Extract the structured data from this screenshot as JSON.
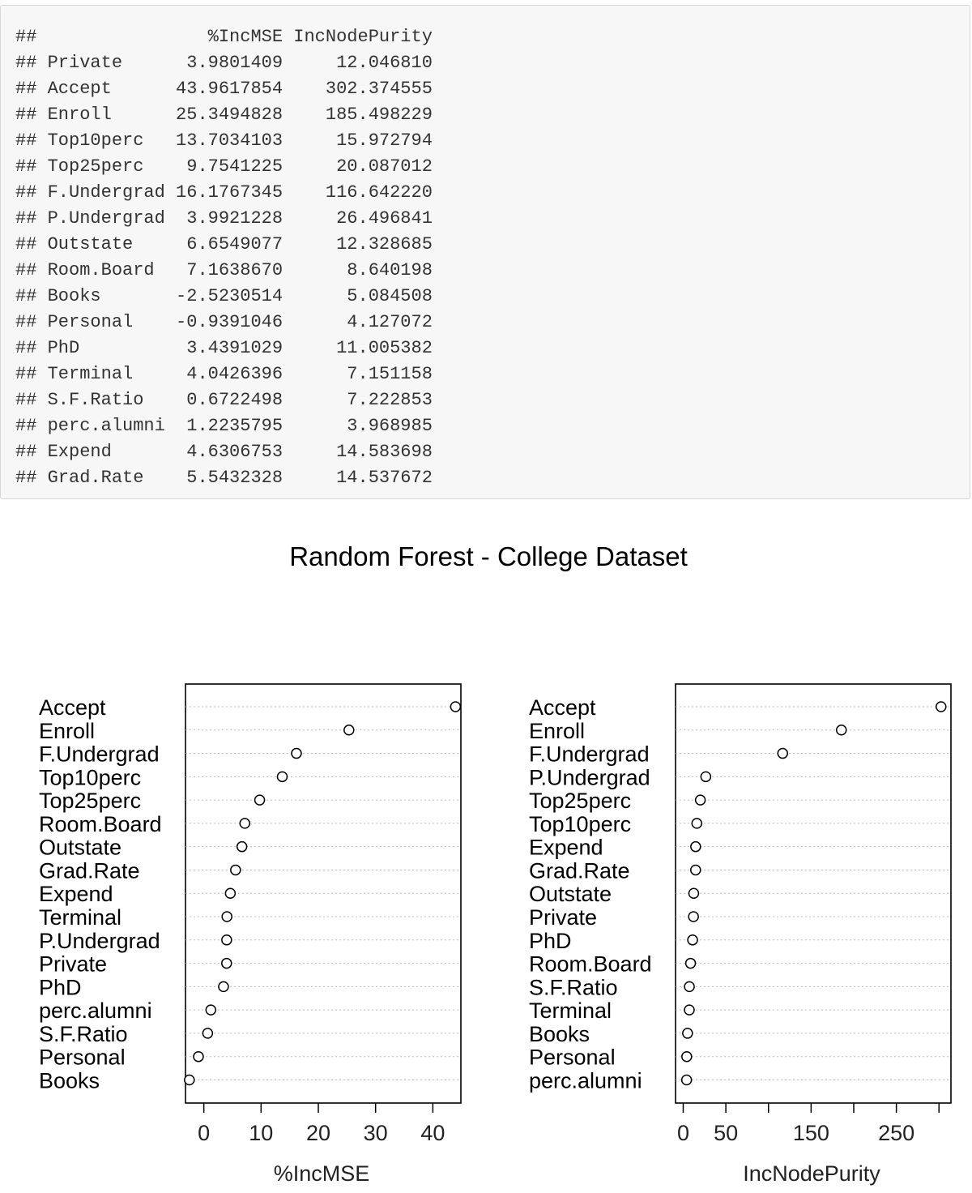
{
  "importance_table": {
    "prefix": "##",
    "headers": [
      "%IncMSE",
      "IncNodePurity"
    ],
    "rows": [
      {
        "name": "Private",
        "inc_mse": "3.9801409",
        "inc_node_purity": "12.046810"
      },
      {
        "name": "Accept",
        "inc_mse": "43.9617854",
        "inc_node_purity": "302.374555"
      },
      {
        "name": "Enroll",
        "inc_mse": "25.3494828",
        "inc_node_purity": "185.498229"
      },
      {
        "name": "Top10perc",
        "inc_mse": "13.7034103",
        "inc_node_purity": "15.972794"
      },
      {
        "name": "Top25perc",
        "inc_mse": "9.7541225",
        "inc_node_purity": "20.087012"
      },
      {
        "name": "F.Undergrad",
        "inc_mse": "16.1767345",
        "inc_node_purity": "116.642220"
      },
      {
        "name": "P.Undergrad",
        "inc_mse": "3.9921228",
        "inc_node_purity": "26.496841"
      },
      {
        "name": "Outstate",
        "inc_mse": "6.6549077",
        "inc_node_purity": "12.328685"
      },
      {
        "name": "Room.Board",
        "inc_mse": "7.1638670",
        "inc_node_purity": "8.640198"
      },
      {
        "name": "Books",
        "inc_mse": "-2.5230514",
        "inc_node_purity": "5.084508"
      },
      {
        "name": "Personal",
        "inc_mse": "-0.9391046",
        "inc_node_purity": "4.127072"
      },
      {
        "name": "PhD",
        "inc_mse": "3.4391029",
        "inc_node_purity": "11.005382"
      },
      {
        "name": "Terminal",
        "inc_mse": "4.0426396",
        "inc_node_purity": "7.151158"
      },
      {
        "name": "S.F.Ratio",
        "inc_mse": "0.6722498",
        "inc_node_purity": "7.222853"
      },
      {
        "name": "perc.alumni",
        "inc_mse": "1.2235795",
        "inc_node_purity": "3.968985"
      },
      {
        "name": "Expend",
        "inc_mse": "4.6306753",
        "inc_node_purity": "14.583698"
      },
      {
        "name": "Grad.Rate",
        "inc_mse": "5.5432328",
        "inc_node_purity": "14.537672"
      }
    ]
  },
  "chart_data": {
    "title": "Random Forest - College Dataset",
    "type": "scatter",
    "panels": [
      {
        "name": "inc-mse",
        "xlabel": "%IncMSE",
        "xlim": [
          -3.2,
          44.9
        ],
        "xticks": [
          0,
          10,
          20,
          30,
          40
        ],
        "grid": "horizontal dotted",
        "points": [
          {
            "label": "Accept",
            "value": 43.9617854
          },
          {
            "label": "Enroll",
            "value": 25.3494828
          },
          {
            "label": "F.Undergrad",
            "value": 16.1767345
          },
          {
            "label": "Top10perc",
            "value": 13.7034103
          },
          {
            "label": "Top25perc",
            "value": 9.7541225
          },
          {
            "label": "Room.Board",
            "value": 7.163867
          },
          {
            "label": "Outstate",
            "value": 6.6549077
          },
          {
            "label": "Grad.Rate",
            "value": 5.5432328
          },
          {
            "label": "Expend",
            "value": 4.6306753
          },
          {
            "label": "Terminal",
            "value": 4.0426396
          },
          {
            "label": "P.Undergrad",
            "value": 3.9921228
          },
          {
            "label": "Private",
            "value": 3.9801409
          },
          {
            "label": "PhD",
            "value": 3.4391029
          },
          {
            "label": "perc.alumni",
            "value": 1.2235795
          },
          {
            "label": "S.F.Ratio",
            "value": 0.6722498
          },
          {
            "label": "Personal",
            "value": -0.9391046
          },
          {
            "label": "Books",
            "value": -2.5230514
          }
        ]
      },
      {
        "name": "inc-node-purity",
        "xlabel": "IncNodePurity",
        "xlim": [
          -9.0,
          314.0
        ],
        "xticks": [
          0,
          50,
          100,
          150,
          200,
          250,
          300
        ],
        "xtick_labels": [
          "0",
          "50",
          "",
          "150",
          "",
          "250",
          ""
        ],
        "grid": "horizontal dotted",
        "points": [
          {
            "label": "Accept",
            "value": 302.374555
          },
          {
            "label": "Enroll",
            "value": 185.498229
          },
          {
            "label": "F.Undergrad",
            "value": 116.64222
          },
          {
            "label": "P.Undergrad",
            "value": 26.496841
          },
          {
            "label": "Top25perc",
            "value": 20.087012
          },
          {
            "label": "Top10perc",
            "value": 15.972794
          },
          {
            "label": "Expend",
            "value": 14.583698
          },
          {
            "label": "Grad.Rate",
            "value": 14.537672
          },
          {
            "label": "Outstate",
            "value": 12.328685
          },
          {
            "label": "Private",
            "value": 12.04681
          },
          {
            "label": "PhD",
            "value": 11.005382
          },
          {
            "label": "Room.Board",
            "value": 8.640198
          },
          {
            "label": "S.F.Ratio",
            "value": 7.222853
          },
          {
            "label": "Terminal",
            "value": 7.151158
          },
          {
            "label": "Books",
            "value": 5.084508
          },
          {
            "label": "Personal",
            "value": 4.127072
          },
          {
            "label": "perc.alumni",
            "value": 3.968985
          }
        ]
      }
    ]
  }
}
